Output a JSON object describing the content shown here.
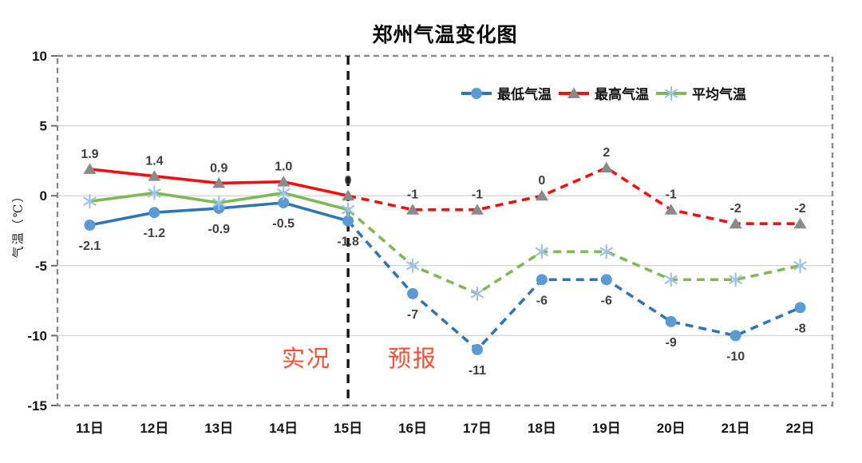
{
  "chart_data": {
    "type": "line",
    "title": "郑州气温变化图",
    "xlabel": "",
    "ylabel": "气温（℃）",
    "categories": [
      "11日",
      "12日",
      "13日",
      "14日",
      "15日",
      "16日",
      "17日",
      "18日",
      "19日",
      "20日",
      "21日",
      "22日"
    ],
    "ylim": [
      -15,
      10
    ],
    "ytick_interval": 5,
    "grid": true,
    "legend_position": "top-right-inside",
    "actual_count": 5,
    "divider_index": 4,
    "divider_labels": {
      "left": "实况",
      "right": "预报"
    },
    "series": [
      {
        "key": "min",
        "name": "最低气温",
        "line_color": "#2E75B6",
        "marker": "circle",
        "marker_color": "#5B9BD5",
        "values": [
          -2.1,
          -1.2,
          -0.9,
          -0.5,
          -1.8,
          -7,
          -11,
          -6,
          -6,
          -9,
          -10,
          -8
        ],
        "labels": [
          "-2.1",
          "-1.2",
          "-0.9",
          "-0.5",
          "-1.8",
          "-7",
          "-11",
          "-6",
          "-6",
          "-9",
          "-10",
          "-8"
        ],
        "label_position": "below"
      },
      {
        "key": "max",
        "name": "最高气温",
        "line_color": "#F70D0D",
        "marker": "triangle",
        "marker_color": "#8A8A8A",
        "values": [
          1.9,
          1.4,
          0.9,
          1.0,
          0,
          -1,
          -1,
          0,
          2,
          -1,
          -2,
          -2
        ],
        "labels": [
          "1.9",
          "1.4",
          "0.9",
          "1.0",
          "0",
          "-1",
          "-1",
          "0",
          "2",
          "-1",
          "-2",
          "-2"
        ],
        "label_position": "above"
      },
      {
        "key": "avg",
        "name": "平均气温",
        "line_color": "#7FB954",
        "marker": "asterisk",
        "marker_color": "#9DC3E6",
        "values": [
          -0.4,
          0.2,
          -0.5,
          0.2,
          -1,
          -5,
          -7,
          -4,
          -4,
          -6,
          -6,
          -5
        ],
        "labels": null,
        "label_position": "none"
      }
    ],
    "styles": {
      "grid_color": "#D9D9D9",
      "border_color": "#8C8C8C",
      "divider_color": "#141414",
      "annotation_color": "#FF4B2F",
      "data_label_color": "#3F3F3F",
      "tick_label_color": "#141414"
    }
  }
}
